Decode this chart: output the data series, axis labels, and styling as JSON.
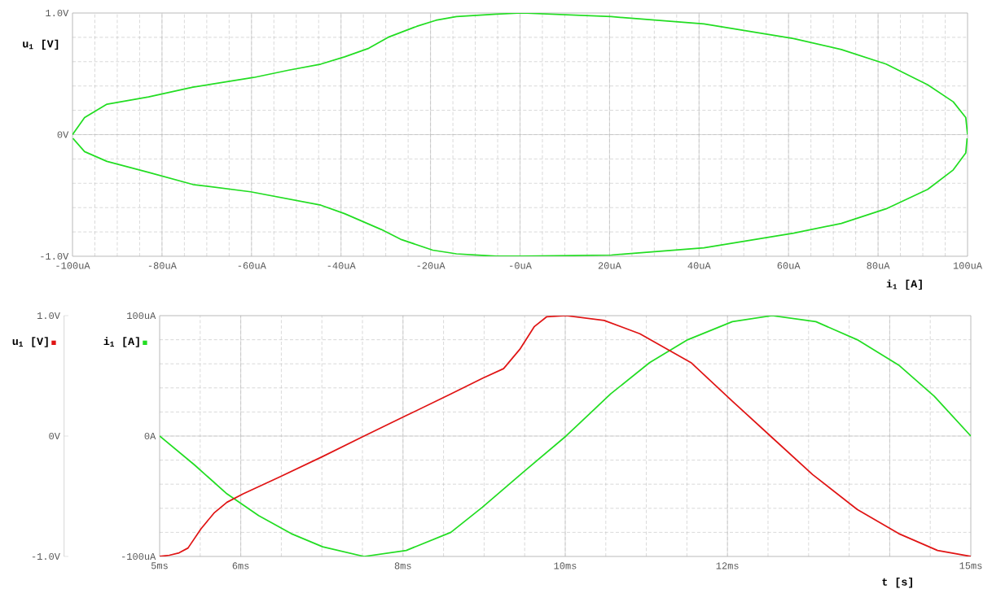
{
  "chart_data": [
    {
      "type": "line",
      "xlabel": "i$_{1}$ [A]",
      "ylabel": "u$_{1}$ [V]",
      "grid": true,
      "xlim": [
        -100,
        100
      ],
      "xticks": [
        {
          "value": -100,
          "label": "-100uA"
        },
        {
          "value": -80,
          "label": "-80uA"
        },
        {
          "value": -60,
          "label": "-60uA"
        },
        {
          "value": -40,
          "label": "-40uA"
        },
        {
          "value": -20,
          "label": "-20uA"
        },
        {
          "value": 0,
          "label": "-0uA"
        },
        {
          "value": 20,
          "label": "20uA"
        },
        {
          "value": 40,
          "label": "40uA"
        },
        {
          "value": 60,
          "label": "60uA"
        },
        {
          "value": 80,
          "label": "80uA"
        },
        {
          "value": 100,
          "label": "100uA"
        }
      ],
      "ylim": [
        -1,
        1
      ],
      "yticks": [
        {
          "value": -1,
          "label": "-1.0V"
        },
        {
          "value": 0,
          "label": "0V"
        },
        {
          "value": 1,
          "label": "1.0V"
        }
      ],
      "series": [
        {
          "color": "#22dd22",
          "x": [
            -100,
            -97.3,
            -92.3,
            -83.0,
            -73.1,
            -59.5,
            -51.7,
            -44.5,
            -39.2,
            -33.8,
            -29.5,
            -23.1,
            -18.8,
            -14.2,
            -5.3,
            0.4,
            20.4,
            41.1,
            61.1,
            71.8,
            81.8,
            91.1,
            96.8,
            99.6,
            100
          ],
          "values": [
            0,
            0.14,
            0.25,
            0.31,
            0.39,
            0.47,
            0.53,
            0.58,
            0.64,
            0.71,
            0.8,
            0.89,
            0.94,
            0.97,
            0.99,
            1.0,
            0.97,
            0.91,
            0.79,
            0.7,
            0.58,
            0.41,
            0.27,
            0.14,
            0
          ]
        },
        {
          "color": "#22dd22",
          "x": [
            -99.9,
            -97.3,
            -92.3,
            -83.0,
            -73.1,
            -60.2,
            -44.5,
            -39.2,
            -31.0,
            -26.7,
            -19.5,
            -14.2,
            -5.3,
            0.4,
            20.4,
            41.1,
            61.1,
            71.8,
            81.8,
            91.1,
            96.8,
            99.6,
            99.9
          ],
          "values": [
            -0.03,
            -0.14,
            -0.22,
            -0.31,
            -0.41,
            -0.47,
            -0.58,
            -0.65,
            -0.78,
            -0.86,
            -0.95,
            -0.98,
            -1.0,
            -1.0,
            -0.99,
            -0.93,
            -0.81,
            -0.73,
            -0.61,
            -0.45,
            -0.29,
            -0.15,
            -0.03
          ]
        }
      ]
    },
    {
      "type": "line",
      "xlabel": "t [s]",
      "ylabel": "u$_{1}$ [V]",
      "y2label": "i$_{1}$ [A]",
      "grid": true,
      "xlim": [
        5,
        15
      ],
      "xticks": [
        {
          "value": 5,
          "label": "5ms"
        },
        {
          "value": 6,
          "label": "6ms"
        },
        {
          "value": 8,
          "label": "8ms"
        },
        {
          "value": 10,
          "label": "10ms"
        },
        {
          "value": 12,
          "label": "12ms"
        },
        {
          "value": 14,
          "label": null
        },
        {
          "value": 15,
          "label": "15ms"
        }
      ],
      "ylim": [
        -1,
        1
      ],
      "yticks": [
        {
          "value": -1,
          "label": "-1.0V"
        },
        {
          "value": 0,
          "label": "0V"
        },
        {
          "value": 1,
          "label": "1.0V"
        }
      ],
      "y2lim": [
        -100,
        100
      ],
      "y2ticks": [
        {
          "value": -100,
          "label": "-100uA"
        },
        {
          "value": 0,
          "label": "0A"
        },
        {
          "value": 100,
          "label": "100uA"
        }
      ],
      "series": [
        {
          "color": "#22dd22",
          "axis": "y2",
          "x": [
            5,
            5.43,
            5.83,
            6.22,
            6.62,
            7.01,
            7.52,
            8.04,
            8.59,
            8.98,
            9.5,
            10.01,
            10.56,
            11.04,
            11.51,
            12.06,
            12.55,
            13.09,
            13.6,
            14.11,
            14.55,
            15
          ],
          "values": [
            0,
            -24,
            -48,
            -66,
            -81,
            -92,
            -100,
            -95,
            -80,
            -59,
            -29,
            0,
            35,
            61,
            80,
            95,
            100,
            95,
            80,
            59,
            33,
            0
          ]
        },
        {
          "color": "#e01414",
          "axis": "y",
          "x": [
            5,
            5.12,
            5.24,
            5.35,
            5.51,
            5.67,
            5.83,
            6.03,
            6.48,
            7.01,
            7.52,
            8.04,
            8.59,
            8.98,
            9.24,
            9.44,
            9.62,
            9.77,
            10.01,
            10.48,
            10.92,
            11.55,
            12.06,
            12.53,
            13.05,
            13.6,
            14.11,
            14.59,
            15
          ],
          "values": [
            -1.0,
            -0.99,
            -0.97,
            -0.93,
            -0.77,
            -0.64,
            -0.55,
            -0.48,
            -0.34,
            -0.17,
            0.0,
            0.17,
            0.35,
            0.48,
            0.56,
            0.72,
            0.91,
            0.99,
            1.0,
            0.96,
            0.85,
            0.61,
            0.29,
            0.0,
            -0.32,
            -0.61,
            -0.81,
            -0.95,
            -1.0
          ]
        }
      ]
    }
  ]
}
